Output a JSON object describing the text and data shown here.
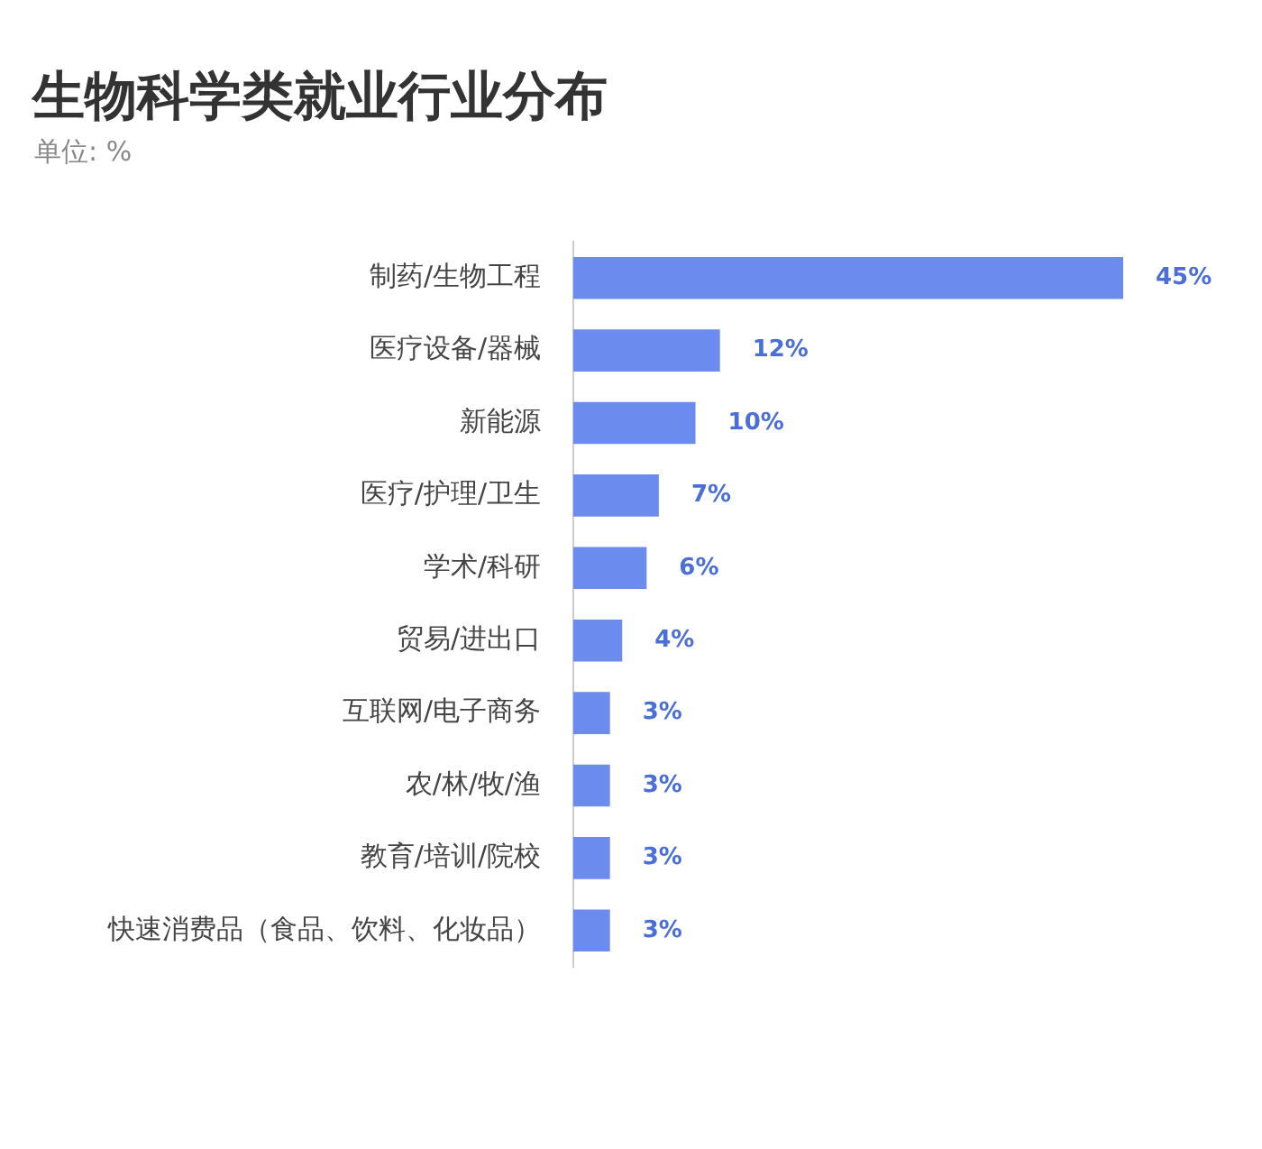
{
  "chart_data": {
    "type": "bar",
    "orientation": "horizontal",
    "title": "生物科学类就业行业分布",
    "subtitle": "单位: %",
    "categories": [
      "制药/生物工程",
      "医疗设备/器械",
      "新能源",
      "医疗/护理/卫生",
      "学术/科研",
      "贸易/进出口",
      "互联网/电子商务",
      "农/林/牧/渔",
      "教育/培训/院校",
      "快速消费品（食品、饮料、化妆品）"
    ],
    "values": [
      45,
      12,
      10,
      7,
      6,
      4,
      3,
      3,
      3,
      3
    ],
    "value_labels": [
      "45%",
      "12%",
      "10%",
      "7%",
      "6%",
      "4%",
      "3%",
      "3%",
      "3%",
      "3%"
    ],
    "color": "#6b8bef",
    "legend": false
  }
}
